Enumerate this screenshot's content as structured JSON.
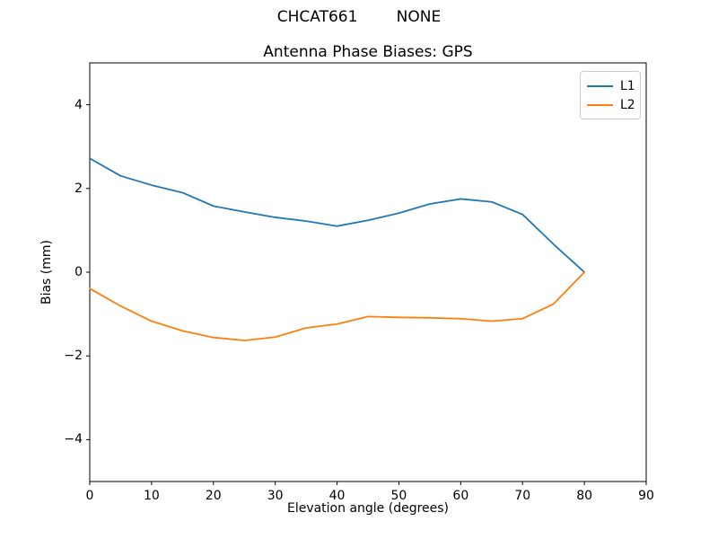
{
  "figure": {
    "suptitle": "CHCAT661        NONE",
    "title": "Antenna Phase Biases: GPS"
  },
  "chart_data": {
    "type": "line",
    "suptitle": "CHCAT661        NONE",
    "title": "Antenna Phase Biases: GPS",
    "xlabel": "Elevation angle (degrees)",
    "ylabel": "Bias (mm)",
    "xlim": [
      0,
      90
    ],
    "ylim": [
      -5,
      5
    ],
    "x_ticks": [
      0,
      10,
      20,
      30,
      40,
      50,
      60,
      70,
      80,
      90
    ],
    "y_ticks": [
      -4,
      -2,
      0,
      2,
      4
    ],
    "grid": false,
    "legend_position": "upper right",
    "x": [
      0,
      5,
      10,
      15,
      20,
      25,
      30,
      35,
      40,
      45,
      50,
      55,
      60,
      65,
      70,
      75,
      80
    ],
    "series": [
      {
        "name": "L1",
        "color": "#1f77b4",
        "values": [
          2.72,
          2.3,
          2.08,
          1.9,
          1.58,
          1.44,
          1.31,
          1.22,
          1.1,
          1.24,
          1.41,
          1.63,
          1.75,
          1.68,
          1.38,
          0.67,
          0.0
        ]
      },
      {
        "name": "L2",
        "color": "#ff7f0e",
        "values": [
          -0.39,
          -0.81,
          -1.17,
          -1.4,
          -1.56,
          -1.63,
          -1.55,
          -1.33,
          -1.24,
          -1.06,
          -1.08,
          -1.09,
          -1.11,
          -1.17,
          -1.11,
          -0.76,
          0.0
        ]
      }
    ]
  }
}
